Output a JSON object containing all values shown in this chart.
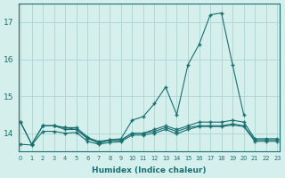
{
  "background_color": "#d4efec",
  "grid_color": "#b0d8d4",
  "line_color": "#1a7070",
  "xlabel": "Humidex (Indice chaleur)",
  "x_all": [
    0,
    1,
    2,
    3,
    4,
    5,
    6,
    7,
    8,
    9,
    10,
    11,
    12,
    13,
    14,
    15,
    16,
    17,
    18,
    19,
    20,
    21,
    22,
    23
  ],
  "line1_x": [
    0,
    1,
    2,
    3,
    4,
    5,
    6,
    7,
    8,
    9,
    10,
    11,
    12,
    13,
    14,
    15,
    16,
    17,
    18,
    19,
    20,
    21,
    22,
    23
  ],
  "line1_y": [
    14.3,
    13.7,
    14.2,
    14.2,
    14.1,
    14.1,
    13.85,
    13.75,
    13.8,
    13.8,
    14.0,
    14.0,
    14.1,
    14.2,
    14.1,
    14.2,
    14.3,
    14.3,
    14.3,
    14.35,
    14.3,
    13.85,
    13.85,
    13.85
  ],
  "line2_x": [
    2,
    3,
    4,
    5,
    6,
    7,
    8,
    9,
    10,
    11,
    12,
    13,
    14,
    15,
    16,
    17,
    18,
    19,
    20,
    21,
    22,
    23
  ],
  "line2_y": [
    14.2,
    14.2,
    14.15,
    14.1,
    13.88,
    13.78,
    13.82,
    13.82,
    14.0,
    14.0,
    14.05,
    14.15,
    14.05,
    14.15,
    14.2,
    14.2,
    14.2,
    14.25,
    14.2,
    13.82,
    13.82,
    13.82
  ],
  "line3_x": [
    0,
    1,
    2,
    3,
    4,
    5,
    6,
    7,
    8,
    9,
    10,
    11,
    12,
    13,
    14,
    15,
    16,
    17,
    18,
    19,
    20
  ],
  "line3_y": [
    14.3,
    13.7,
    14.2,
    14.2,
    14.15,
    14.15,
    13.9,
    13.72,
    13.82,
    13.85,
    14.35,
    14.45,
    14.8,
    15.25,
    14.5,
    15.85,
    16.4,
    17.2,
    17.25,
    15.85,
    14.5
  ],
  "line4_x": [
    0,
    1,
    2,
    3,
    4,
    5,
    6,
    7,
    8,
    9,
    10,
    11,
    12,
    13,
    14,
    15,
    16,
    17,
    18,
    19,
    20,
    21,
    22,
    23
  ],
  "line4_y": [
    13.7,
    13.68,
    14.05,
    14.05,
    14.0,
    14.02,
    13.78,
    13.7,
    13.75,
    13.77,
    13.95,
    13.95,
    14.0,
    14.1,
    13.98,
    14.1,
    14.18,
    14.18,
    14.18,
    14.22,
    14.18,
    13.78,
    13.78,
    13.78
  ],
  "ylim": [
    13.5,
    17.5
  ],
  "xlim": [
    -0.2,
    23.2
  ],
  "yticks": [
    14,
    15,
    16,
    17
  ],
  "xticks": [
    0,
    1,
    2,
    3,
    4,
    5,
    6,
    7,
    8,
    9,
    10,
    11,
    12,
    13,
    14,
    15,
    16,
    17,
    18,
    19,
    20,
    21,
    22,
    23
  ]
}
